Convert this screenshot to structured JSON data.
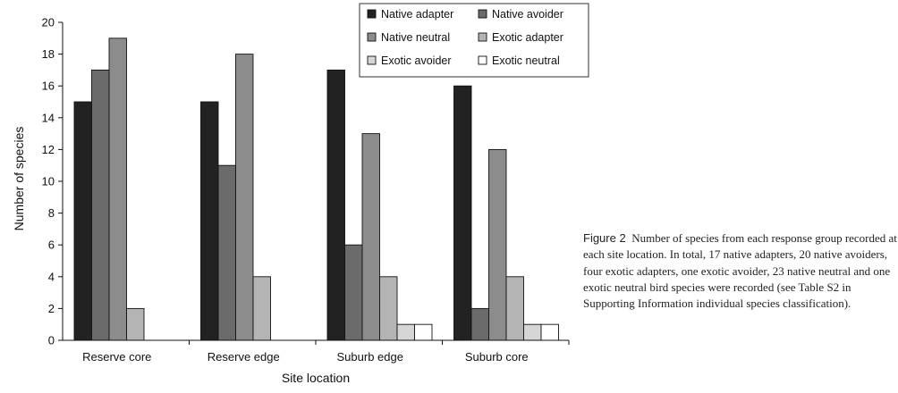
{
  "chart_data": {
    "type": "bar",
    "xlabel": "Site location",
    "ylabel": "Number of species",
    "ylim": [
      0,
      20
    ],
    "yticks": [
      0,
      2,
      4,
      6,
      8,
      10,
      12,
      14,
      16,
      18,
      20
    ],
    "grid": false,
    "legend_position": "top-right",
    "categories": [
      "Reserve core",
      "Reserve edge",
      "Suburb edge",
      "Suburb core"
    ],
    "series": [
      {
        "name": "Native adapter",
        "values": [
          15,
          15,
          17,
          16
        ],
        "color": "#222222"
      },
      {
        "name": "Native avoider",
        "values": [
          17,
          11,
          6,
          2
        ],
        "color": "#6b6b6b"
      },
      {
        "name": "Native neutral",
        "values": [
          19,
          18,
          13,
          12
        ],
        "color": "#8c8c8c"
      },
      {
        "name": "Exotic adapter",
        "values": [
          2,
          4,
          4,
          4
        ],
        "color": "#b4b4b4"
      },
      {
        "name": "Exotic avoider",
        "values": [
          0,
          0,
          1,
          1
        ],
        "color": "#d6d6d6"
      },
      {
        "name": "Exotic neutral",
        "values": [
          0,
          0,
          1,
          1
        ],
        "color": "#ffffff"
      }
    ]
  },
  "caption": {
    "label": "Figure 2",
    "text": "Number of species from each response group recorded at each site location. In total, 17 native adapters, 20 native avoiders, four exotic adapters, one exotic avoider, 23 native neutral and one exotic neutral bird species were recorded (see Table S2 in Supporting Information individual species classification)."
  }
}
